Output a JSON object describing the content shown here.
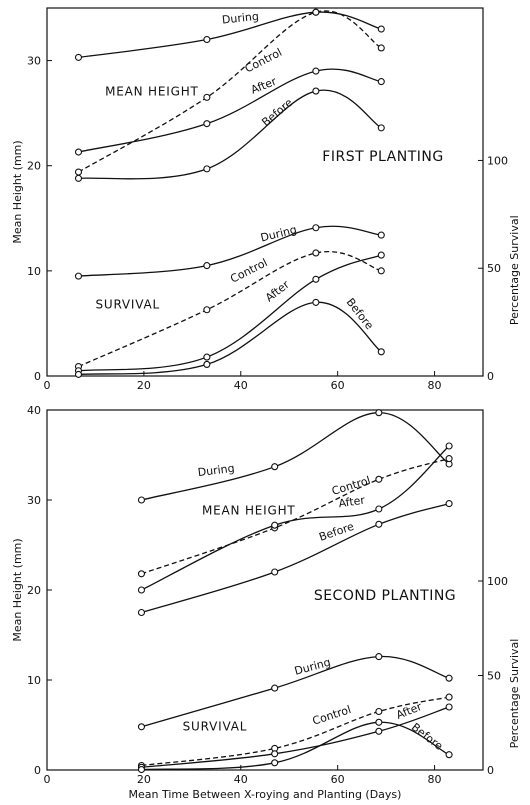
{
  "chart_data": [
    {
      "type": "line",
      "panel_title": "FIRST PLANTING",
      "ylabel": "Mean Height (mm)",
      "ylabel_right": "Percentage Survival",
      "xlim": [
        0,
        90
      ],
      "ylim": [
        0,
        35
      ],
      "xticks": [
        0,
        20,
        40,
        60,
        80
      ],
      "yticks": [
        0,
        10,
        20,
        30
      ],
      "right_ticks": [
        {
          "value": 0,
          "y": 0
        },
        {
          "value": 50,
          "y": 10.25
        },
        {
          "value": 100,
          "y": 20.5
        }
      ],
      "groups": [
        {
          "label": "MEAN HEIGHT",
          "label_at": [
            12,
            26.7
          ]
        },
        {
          "label": "SURVIVAL",
          "label_at": [
            10,
            6.4
          ]
        }
      ],
      "series": [
        {
          "name": "During",
          "group": "MEAN HEIGHT",
          "style": "solid",
          "points": [
            [
              6.5,
              30.3
            ],
            [
              33,
              32
            ],
            [
              55.5,
              34.6
            ],
            [
              69,
              33
            ]
          ],
          "label_at": [
            40,
            33.7
          ],
          "label_angle": -6
        },
        {
          "name": "Control",
          "group": "MEAN HEIGHT",
          "style": "dashed",
          "points": [
            [
              6.5,
              19.4
            ],
            [
              33,
              26.5
            ],
            [
              55.5,
              34.6
            ],
            [
              69,
              31.2
            ]
          ],
          "label_at": [
            45,
            29.7
          ],
          "label_angle": -27
        },
        {
          "name": "After",
          "group": "MEAN HEIGHT",
          "style": "solid",
          "points": [
            [
              6.5,
              21.3
            ],
            [
              33,
              24
            ],
            [
              55.5,
              29
            ],
            [
              69,
              28
            ]
          ],
          "label_at": [
            45,
            27.3
          ],
          "label_angle": -22
        },
        {
          "name": "Before",
          "group": "MEAN HEIGHT",
          "style": "solid",
          "points": [
            [
              6.5,
              18.8
            ],
            [
              33,
              19.7
            ],
            [
              55.5,
              27.1
            ],
            [
              69,
              23.6
            ]
          ],
          "label_at": [
            48,
            24.8
          ],
          "label_angle": -40
        },
        {
          "name": "During",
          "group": "SURVIVAL",
          "style": "solid",
          "points": [
            [
              6.5,
              9.5
            ],
            [
              33,
              10.5
            ],
            [
              55.5,
              14.1
            ],
            [
              69,
              13.4
            ]
          ],
          "label_at": [
            48,
            13.2
          ],
          "label_angle": -14
        },
        {
          "name": "Control",
          "group": "SURVIVAL",
          "style": "dashed",
          "points": [
            [
              6.5,
              0.9
            ],
            [
              33,
              6.3
            ],
            [
              55.5,
              11.7
            ],
            [
              69,
              10
            ]
          ],
          "label_at": [
            42,
            9.7
          ],
          "label_angle": -27
        },
        {
          "name": "After",
          "group": "SURVIVAL",
          "style": "solid",
          "points": [
            [
              6.5,
              0.5
            ],
            [
              33,
              1.8
            ],
            [
              55.5,
              9.2
            ],
            [
              69,
              11.5
            ]
          ],
          "label_at": [
            48,
            7.8
          ],
          "label_angle": -38
        },
        {
          "name": "Before",
          "group": "SURVIVAL",
          "style": "solid",
          "points": [
            [
              6.5,
              0.15
            ],
            [
              33,
              1.1
            ],
            [
              55.5,
              7
            ],
            [
              69,
              2.3
            ]
          ],
          "label_at": [
            64,
            5.7
          ],
          "label_angle": 52
        }
      ]
    },
    {
      "type": "line",
      "panel_title": "SECOND PLANTING",
      "xlabel": "Mean Time Between X-roying and Planting (Days)",
      "ylabel": "Mean Height (mm)",
      "ylabel_right": "Percentage Survival",
      "xlim": [
        0,
        90
      ],
      "ylim": [
        0,
        40
      ],
      "xticks": [
        0,
        20,
        40,
        60,
        80
      ],
      "yticks": [
        0,
        10,
        20,
        30,
        40
      ],
      "right_ticks": [
        {
          "value": 0,
          "y": 0
        },
        {
          "value": 50,
          "y": 10.5
        },
        {
          "value": 100,
          "y": 21
        }
      ],
      "groups": [
        {
          "label": "MEAN HEIGHT",
          "label_at": [
            32,
            28.4
          ]
        },
        {
          "label": "SURVIVAL",
          "label_at": [
            28,
            4.4
          ]
        }
      ],
      "series": [
        {
          "name": "During",
          "group": "MEAN HEIGHT",
          "style": "solid",
          "points": [
            [
              19.5,
              30
            ],
            [
              47,
              33.7
            ],
            [
              68.5,
              39.7
            ],
            [
              83,
              34
            ]
          ],
          "label_at": [
            35,
            32.9
          ],
          "label_angle": -7
        },
        {
          "name": "Control",
          "group": "MEAN HEIGHT",
          "style": "dashed",
          "points": [
            [
              19.5,
              21.8
            ],
            [
              47,
              26.9
            ],
            [
              68.5,
              32.3
            ],
            [
              83,
              34.6
            ]
          ],
          "label_at": [
            63,
            31.2
          ],
          "label_angle": -17
        },
        {
          "name": "After",
          "group": "MEAN HEIGHT",
          "style": "solid",
          "points": [
            [
              19.5,
              20
            ],
            [
              47,
              27.2
            ],
            [
              68.5,
              29
            ],
            [
              83,
              36
            ]
          ],
          "label_at": [
            63,
            29.4
          ],
          "label_angle": -8
        },
        {
          "name": "Before",
          "group": "MEAN HEIGHT",
          "style": "solid",
          "points": [
            [
              19.5,
              17.5
            ],
            [
              47,
              22
            ],
            [
              68.5,
              27.3
            ],
            [
              83,
              29.6
            ]
          ],
          "label_at": [
            60,
            26.1
          ],
          "label_angle": -19
        },
        {
          "name": "During",
          "group": "SURVIVAL",
          "style": "solid",
          "points": [
            [
              19.5,
              4.8
            ],
            [
              47,
              9.1
            ],
            [
              68.5,
              12.6
            ],
            [
              83,
              10.2
            ]
          ],
          "label_at": [
            55,
            11.1
          ],
          "label_angle": -15
        },
        {
          "name": "Control",
          "group": "SURVIVAL",
          "style": "dashed",
          "points": [
            [
              19.5,
              0.5
            ],
            [
              47,
              2.4
            ],
            [
              68.5,
              6.5
            ],
            [
              83,
              8.1
            ]
          ],
          "label_at": [
            59,
            5.7
          ],
          "label_angle": -18
        },
        {
          "name": "After",
          "group": "SURVIVAL",
          "style": "solid",
          "points": [
            [
              19.5,
              0.3
            ],
            [
              47,
              1.8
            ],
            [
              68.5,
              4.3
            ],
            [
              83,
              7
            ]
          ],
          "label_at": [
            75,
            6.2
          ],
          "label_angle": -22
        },
        {
          "name": "Before",
          "group": "SURVIVAL",
          "style": "solid",
          "points": [
            [
              19.5,
              0.05
            ],
            [
              47,
              0.8
            ],
            [
              68.5,
              5.3
            ],
            [
              83,
              1.7
            ]
          ],
          "label_at": [
            78,
            3.4
          ],
          "label_angle": 38
        }
      ]
    }
  ]
}
